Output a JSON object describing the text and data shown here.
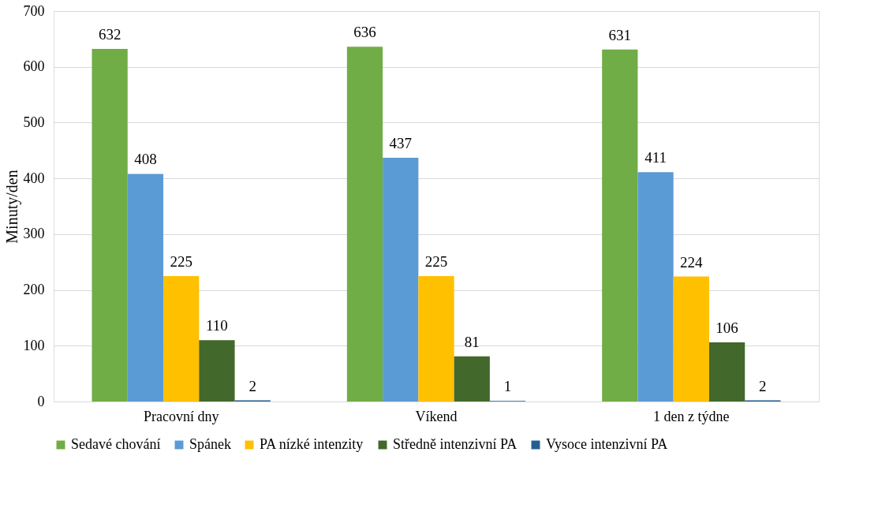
{
  "chart_data": {
    "type": "bar",
    "ylabel": "Minuty/den",
    "categories": [
      "Pracovní dny",
      "Víkend",
      "1 den z týdne"
    ],
    "series": [
      {
        "name": "Sedavé chování",
        "color": "#70ad47",
        "values": [
          632,
          636,
          631
        ]
      },
      {
        "name": "Spánek",
        "color": "#5b9bd5",
        "values": [
          408,
          437,
          411
        ]
      },
      {
        "name": "PA nízké intenzity",
        "color": "#ffc000",
        "values": [
          225,
          225,
          224
        ]
      },
      {
        "name": "Středně intenzivní PA",
        "color": "#43682b",
        "values": [
          110,
          81,
          106
        ]
      },
      {
        "name": "Vysoce intenzivní PA",
        "color": "#255e91",
        "values": [
          2,
          1,
          2
        ]
      }
    ],
    "ylim": [
      0,
      700
    ],
    "yticks": [
      0,
      100,
      200,
      300,
      400,
      500,
      600,
      700
    ],
    "grid": "y",
    "legend": "bottom",
    "data_labels": true
  }
}
